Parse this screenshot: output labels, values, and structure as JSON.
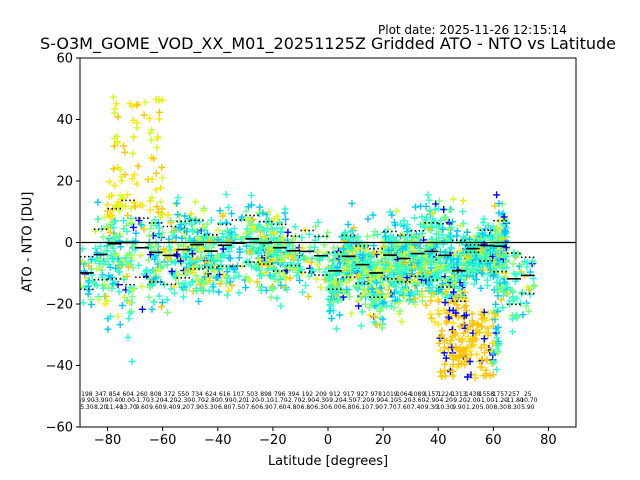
{
  "header": {
    "plot_date": "Plot date: 2025-11-26 12:15:14",
    "title": "S-O3M_GOME_VOD_XX_M01_20251125Z Gridded ATO - NTO vs Latitude"
  },
  "chart_data": {
    "type": "scatter",
    "title": "S-O3M_GOME_VOD_XX_M01_20251125Z Gridded ATO - NTO vs Latitude",
    "xlabel": "Latitude [degrees]",
    "ylabel": "ATO - NTO [DU]",
    "xlim": [
      -90,
      90
    ],
    "ylim": [
      -60,
      60
    ],
    "xticks": [
      -80,
      -60,
      -40,
      -20,
      0,
      20,
      40,
      60,
      80
    ],
    "yticks": [
      -60,
      -40,
      -20,
      0,
      20,
      40,
      60
    ],
    "grid": false,
    "zero_line": 0,
    "marker": "+",
    "colors": [
      "#0000ff",
      "#00c8ff",
      "#29ffce",
      "#7dff7a",
      "#ceff29",
      "#ffc400",
      "#ffe600"
    ],
    "bins": [
      {
        "lat": -87.5,
        "count": 198,
        "mean": -9.9,
        "std": 5.3
      },
      {
        "lat": -82.5,
        "count": 347,
        "mean": -3.9,
        "std": 8.2
      },
      {
        "lat": -77.5,
        "count": 854,
        "mean": -0.4,
        "std": 11.4
      },
      {
        "lat": -72.5,
        "count": 604,
        "mean": -0.0,
        "std": 13.7
      },
      {
        "lat": -67.5,
        "count": 260,
        "mean": -1.7,
        "std": 9.6
      },
      {
        "lat": -62.5,
        "count": 808,
        "mean": -3.2,
        "std": 9.6
      },
      {
        "lat": -57.5,
        "count": 372,
        "mean": -4.2,
        "std": 9.4
      },
      {
        "lat": -52.5,
        "count": 550,
        "mean": -2.3,
        "std": 9.2
      },
      {
        "lat": -47.5,
        "count": 734,
        "mean": -0.7,
        "std": 7.9
      },
      {
        "lat": -42.5,
        "count": 624,
        "mean": -2.8,
        "std": 5.3
      },
      {
        "lat": -37.5,
        "count": 616,
        "mean": -0.9,
        "std": 6.8
      },
      {
        "lat": -32.5,
        "count": 107,
        "mean": -0.2,
        "std": 7.5
      },
      {
        "lat": -27.5,
        "count": 503,
        "mean": 1.2,
        "std": 7.6
      },
      {
        "lat": -22.5,
        "count": 898,
        "mean": -0.1,
        "std": 6.9
      },
      {
        "lat": -17.5,
        "count": 796,
        "mean": -1.7,
        "std": 7.6
      },
      {
        "lat": -12.5,
        "count": 394,
        "mean": -2.7,
        "std": 4.8
      },
      {
        "lat": -7.5,
        "count": 192,
        "mean": -2.9,
        "std": 6.8
      },
      {
        "lat": -2.5,
        "count": 209,
        "mean": -4.3,
        "std": 6.3
      },
      {
        "lat": 2.5,
        "count": 912,
        "mean": -9.2,
        "std": 6.0
      },
      {
        "lat": 7.5,
        "count": 917,
        "mean": -4.5,
        "std": 6.8
      },
      {
        "lat": 12.5,
        "count": 927,
        "mean": -7.2,
        "std": 6.1
      },
      {
        "lat": 17.5,
        "count": 978,
        "mean": -9.9,
        "std": 7.9
      },
      {
        "lat": 22.5,
        "count": 1019,
        "mean": -4.1,
        "std": 7.7
      },
      {
        "lat": 27.5,
        "count": 1064,
        "mean": -5.2,
        "std": 7.6
      },
      {
        "lat": 32.5,
        "count": 1089,
        "mean": -3.6,
        "std": 7.4
      },
      {
        "lat": 37.5,
        "count": 1157,
        "mean": -2.9,
        "std": 9.3
      },
      {
        "lat": 42.5,
        "count": 1224,
        "mean": -4.2,
        "std": 10.3
      },
      {
        "lat": 47.5,
        "count": 1313,
        "mean": -9.2,
        "std": 9.9
      },
      {
        "lat": 52.5,
        "count": 1438,
        "mean": -2.0,
        "std": 1.2
      },
      {
        "lat": 57.5,
        "count": 1558,
        "mean": -1.0,
        "std": 5.0
      },
      {
        "lat": 62.5,
        "count": 1757,
        "mean": -1.2,
        "std": 8.3
      },
      {
        "lat": 67.5,
        "count": 257,
        "mean": -11.8,
        "std": 8.3
      },
      {
        "lat": 72.5,
        "count": 25,
        "mean": -10.7,
        "std": 5.9
      }
    ]
  }
}
